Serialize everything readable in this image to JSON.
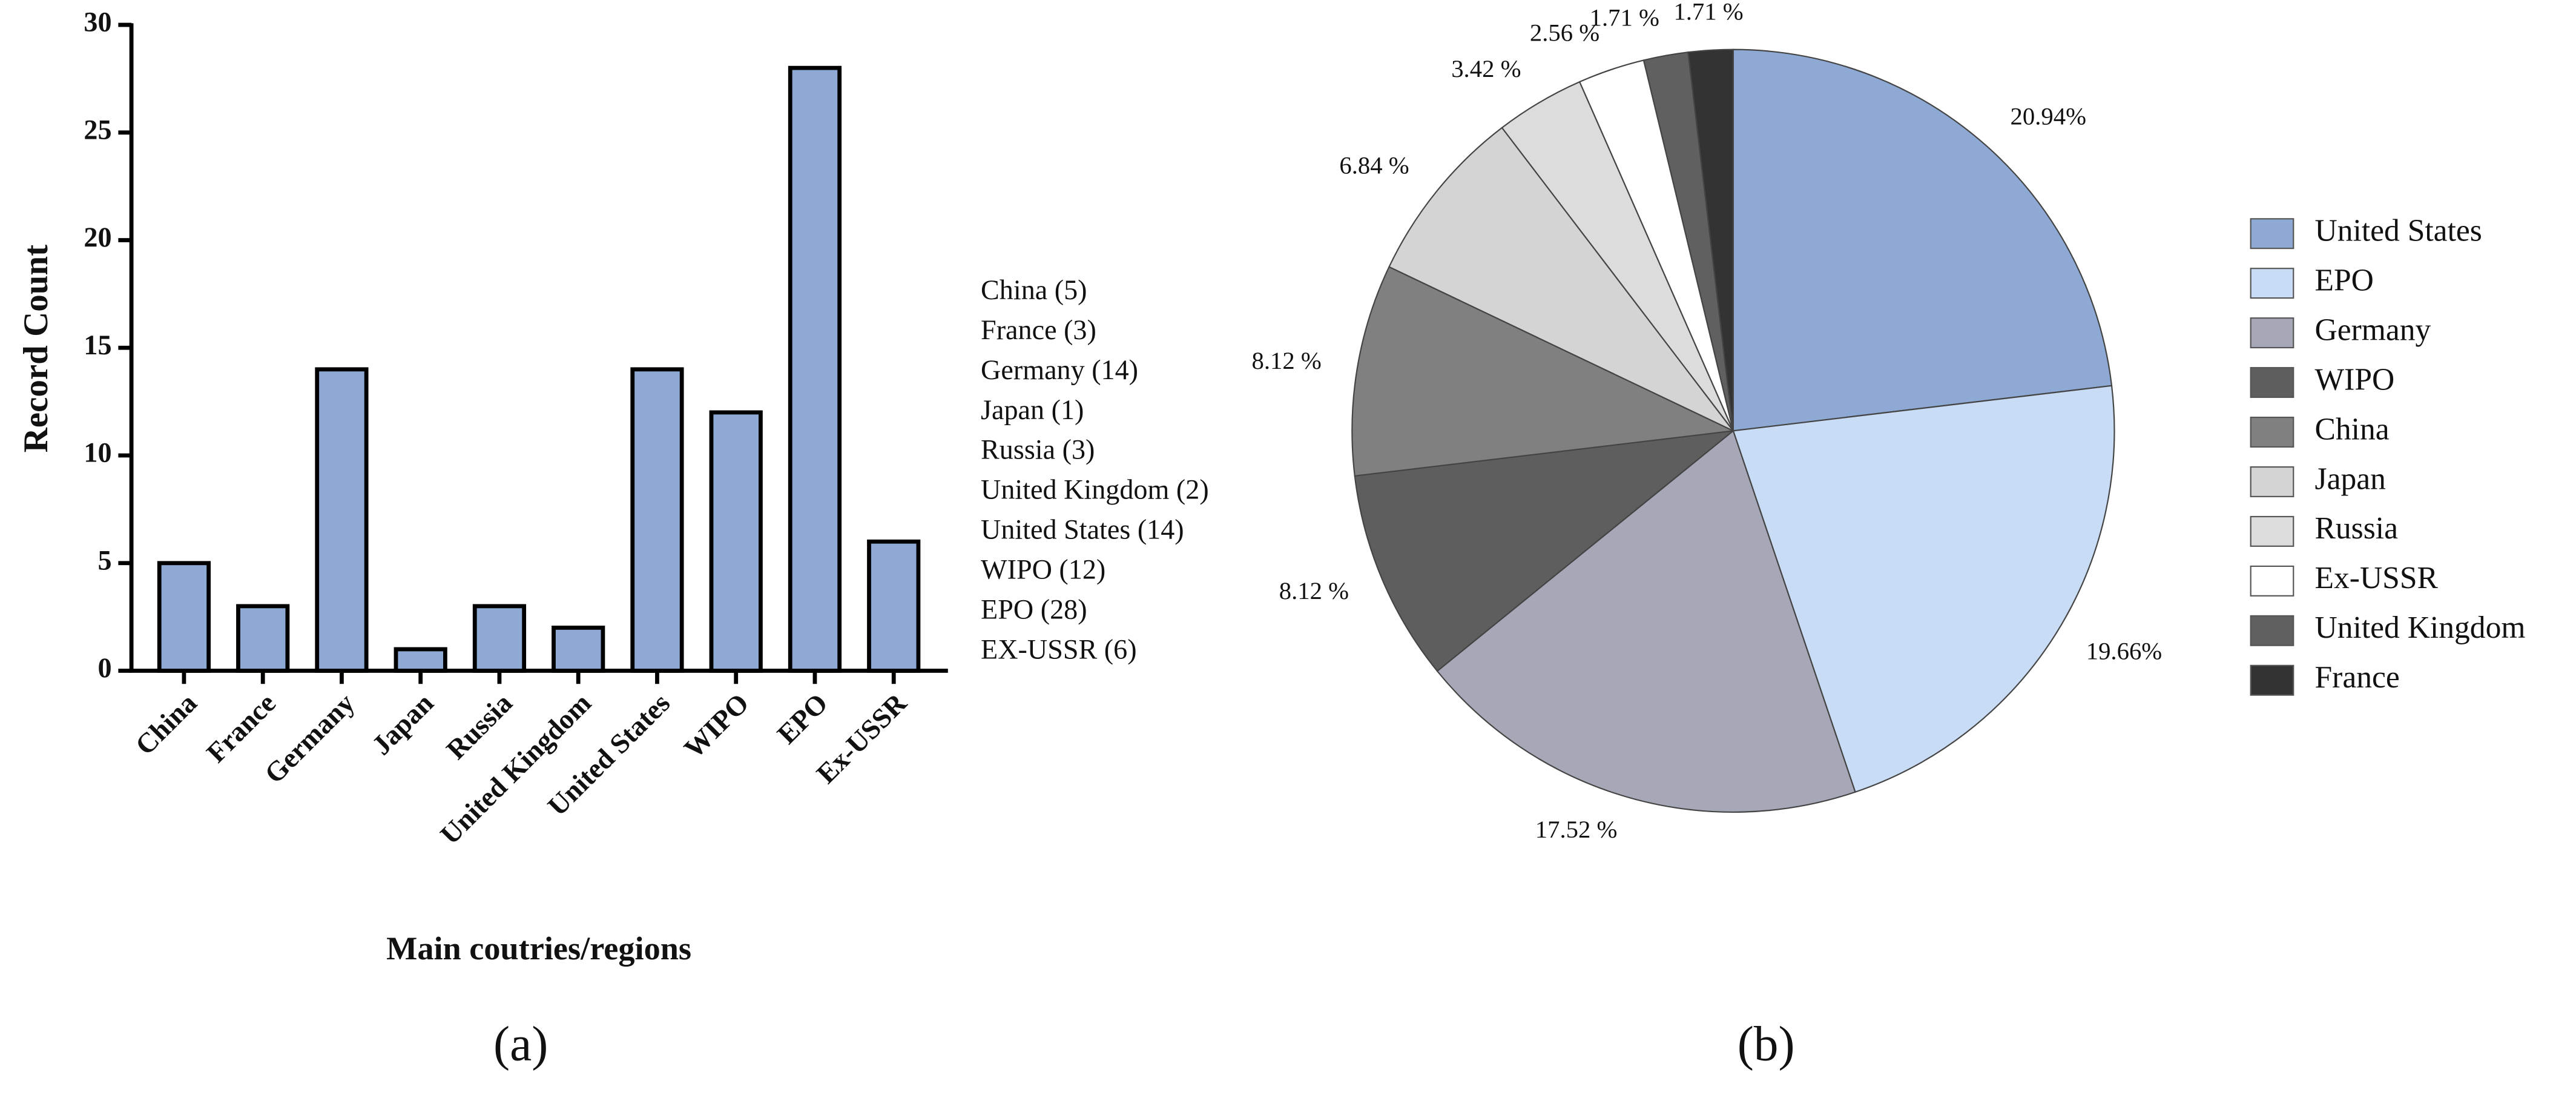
{
  "chart_data": [
    {
      "type": "bar",
      "categories": [
        "China",
        "France",
        "Germany",
        "Japan",
        "Russia",
        "United Kingdom",
        "United States",
        "WIPO",
        "EPO",
        "Ex-USSR"
      ],
      "values": [
        5,
        3,
        14,
        1,
        3,
        2,
        14,
        12,
        28,
        6
      ],
      "color": "#8eaad4",
      "ylim": [
        0,
        30
      ],
      "yticks": [
        0,
        5,
        10,
        15,
        20,
        25,
        30
      ],
      "y_label": "Record Count",
      "x_label": "Main coutries/regions",
      "annotations": [
        "China (5)",
        "France (3)",
        "Germany (14)",
        "Japan (1)",
        "Russia (3)",
        "United Kingdom (2)",
        "United States (14)",
        "WIPO (12)",
        "EPO (28)",
        "EX-USSR (6)"
      ],
      "panel_label": "(a)"
    },
    {
      "type": "pie",
      "categories": [
        "United States",
        "EPO",
        "Germany",
        "WIPO",
        "China",
        "Japan",
        "Russia",
        "Ex-USSR",
        "United Kingdom",
        "France"
      ],
      "values": [
        20.94,
        19.66,
        17.52,
        8.12,
        8.12,
        6.84,
        3.42,
        2.56,
        1.71,
        1.71
      ],
      "value_labels": [
        "20.94%",
        "19.66%",
        "17.52 %",
        "8.12 %",
        "8.12 %",
        "6.84 %",
        "3.42 %",
        "2.56 %",
        "1.71 %",
        "1.71 %"
      ],
      "colors": [
        "#8eaad4",
        "#c9dcf5",
        "#a6a8b8",
        "#5e5e5e",
        "#808080",
        "#d4d4d4",
        "#dcdcdc",
        "#ffffff",
        "#606060",
        "#333333"
      ],
      "legend": "right",
      "panel_label": "(b)"
    }
  ]
}
